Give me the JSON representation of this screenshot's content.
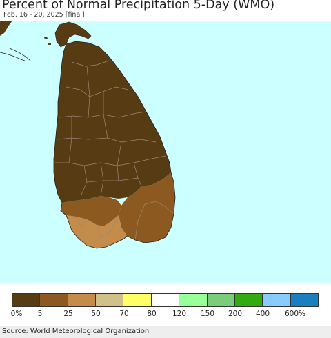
{
  "header": {
    "title": "Percent of Normal Precipitation 5-Day (WMO)",
    "subtitle": "Feb. 16 - 20, 2025 [final]"
  },
  "map": {
    "ocean_color": "#ccffff",
    "border_color": "#9a8a78",
    "regions": [
      {
        "name": "northern-plains",
        "category": "0-5%",
        "color": "#573b12"
      },
      {
        "name": "south-west-band",
        "category": "5-25%",
        "color": "#8c5a20"
      },
      {
        "name": "south-east-block",
        "category": "5-25%",
        "color": "#8c5a20"
      },
      {
        "name": "southern-tip",
        "category": "25-50%",
        "color": "#c38c4a"
      }
    ]
  },
  "legend": {
    "colors": [
      "#573b12",
      "#8c5a20",
      "#c38c4a",
      "#d2c08a",
      "#ffff66",
      "#ffffff",
      "#99ff99",
      "#7ccc7c",
      "#33aa10",
      "#88ccff",
      "#1a7fc0"
    ],
    "labels": [
      "0%",
      "5",
      "25",
      "50",
      "70",
      "80",
      "120",
      "150",
      "200",
      "400",
      "600%"
    ]
  },
  "footer": {
    "source": "Source: World Meteorological Organization"
  }
}
